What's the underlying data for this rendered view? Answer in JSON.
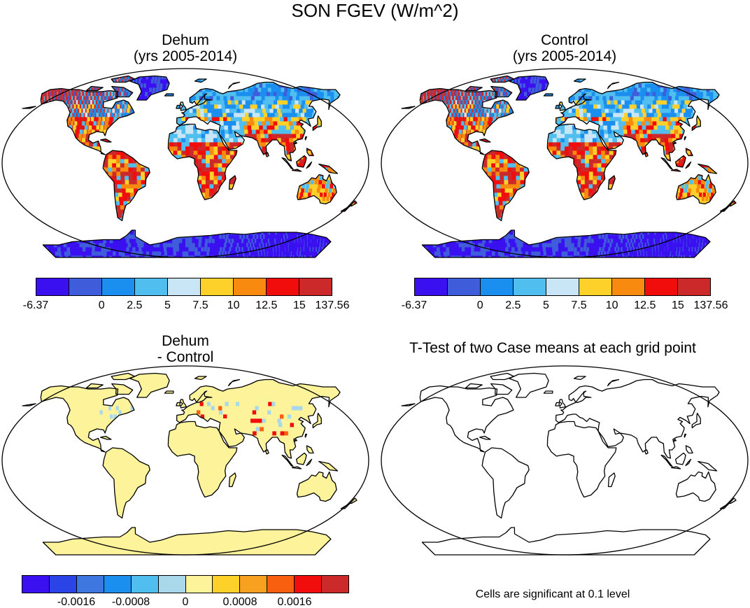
{
  "figure": {
    "title": "SON FGEV (W/m^2)"
  },
  "panels": {
    "dehum": {
      "title_line1": "Dehum",
      "title_line2": "(yrs 2005-2014)",
      "fill_pattern": "full-range"
    },
    "control": {
      "title_line1": "Control",
      "title_line2": "(yrs 2005-2014)",
      "fill_pattern": "full-range"
    },
    "difference": {
      "title_line1": "Dehum",
      "title_line2": "- Control",
      "fill_pattern": "near-zero"
    },
    "ttest": {
      "title": "T-Test of two Case means at each grid point",
      "note": "Cells are significant at 0.1 level",
      "fill_pattern": "none"
    }
  },
  "colorbars": {
    "main": {
      "colors": [
        "#3a10f0",
        "#3f5cdb",
        "#1a8ff0",
        "#50bff0",
        "#c8e6f5",
        "#fdd02a",
        "#f88a10",
        "#f20d0d",
        "#cc2a2a"
      ],
      "tick_labels": [
        "-6.37",
        "0",
        "2.5",
        "5",
        "7.5",
        "10",
        "12.5",
        "15",
        "137.56"
      ],
      "tick_positions": [
        0,
        2,
        3,
        4,
        5,
        6,
        7,
        8,
        9
      ]
    },
    "diff": {
      "colors": [
        "#3a10f0",
        "#2a44e8",
        "#3f77e0",
        "#1a8ff0",
        "#50bff0",
        "#a8d8ea",
        "#fcf39a",
        "#fdd02a",
        "#f8a020",
        "#f86010",
        "#f20d0d",
        "#cc2a2a"
      ],
      "tick_labels": [
        "-0.0016",
        "-0.0008",
        "0",
        "0.0008",
        "0.0016"
      ],
      "tick_positions": [
        2,
        4,
        6,
        8,
        10
      ]
    }
  }
}
